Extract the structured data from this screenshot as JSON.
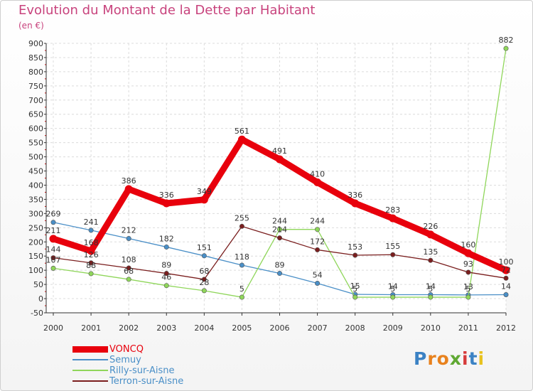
{
  "title": "Evolution du Montant de la Dette par Habitant",
  "unit": "(en €)",
  "logo": {
    "text": "Proxiti",
    "colors": [
      "#3b82c4",
      "#e8821e",
      "#e8821e",
      "#5fa832",
      "#d63b3b",
      "#3b82c4",
      "#e8c21e"
    ]
  },
  "chart_data": {
    "type": "line",
    "x": [
      "2000",
      "2001",
      "2002",
      "2003",
      "2004",
      "2005",
      "2006",
      "2007",
      "2008",
      "2009",
      "2010",
      "2011",
      "2012"
    ],
    "ylim": [
      -50,
      900
    ],
    "yticks": [
      -50,
      0,
      50,
      100,
      150,
      200,
      250,
      300,
      350,
      400,
      450,
      500,
      550,
      600,
      650,
      700,
      750,
      800,
      850,
      900
    ],
    "grid": true,
    "legend": "bottom-left",
    "series": [
      {
        "name": "VONCQ",
        "color": "#e8000c",
        "values": [
          211,
          168,
          386,
          336,
          349,
          561,
          491,
          410,
          336,
          283,
          226,
          160,
          100
        ]
      },
      {
        "name": "Semuy",
        "color": "#4a8fc7",
        "values": [
          269,
          241,
          212,
          182,
          151,
          118,
          89,
          54,
          15,
          14,
          14,
          13,
          14
        ]
      },
      {
        "name": "Rilly-sur-Aisne",
        "color": "#8fd65a",
        "values": [
          107,
          88,
          68,
          46,
          28,
          5,
          244,
          244,
          5,
          5,
          5,
          5,
          882
        ]
      },
      {
        "name": "Terron-sur-Aisne",
        "color": "#7a1e1e",
        "values": [
          144,
          126,
          108,
          89,
          68,
          255,
          214,
          172,
          153,
          155,
          135,
          93,
          72
        ]
      }
    ]
  }
}
